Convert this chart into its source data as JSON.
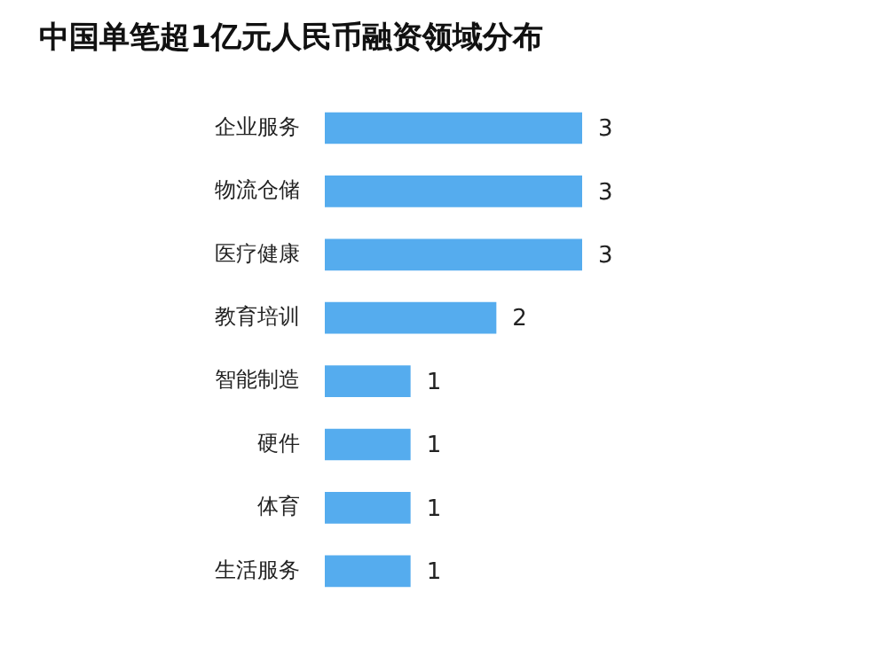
{
  "chart_data": {
    "type": "bar",
    "orientation": "horizontal",
    "title": "中国单笔超1亿元人民币融资领域分布",
    "categories": [
      "企业服务",
      "物流仓储",
      "医疗健康",
      "教育培训",
      "智能制造",
      "硬件",
      "体育",
      "生活服务"
    ],
    "values": [
      3,
      3,
      3,
      2,
      1,
      1,
      1,
      1
    ],
    "color": "#55acee",
    "data_labels": true
  }
}
